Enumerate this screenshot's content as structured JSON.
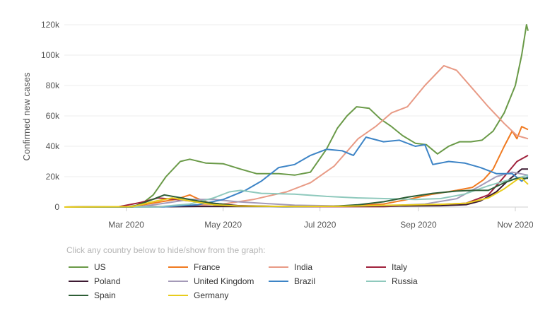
{
  "chart_data": {
    "type": "line",
    "ylabel": "Confirmed new cases",
    "ylim": [
      0,
      120000
    ],
    "yticks": [
      0,
      20000,
      40000,
      60000,
      80000,
      100000,
      120000
    ],
    "ytick_labels": [
      "0",
      "20k",
      "40k",
      "60k",
      "80k",
      "100k",
      "120k"
    ],
    "xlim": [
      "2020-01-22",
      "2020-11-09"
    ],
    "xticks": [
      "2020-03-01",
      "2020-05-01",
      "2020-07-01",
      "2020-09-01",
      "2020-11-01"
    ],
    "xtick_labels": [
      "Mar 2020",
      "May 2020",
      "Jul 2020",
      "Sep 2020",
      "Nov 2020"
    ],
    "grid": "horizontal",
    "legend_hint": "Click any country below to hide/show from the graph:",
    "series": [
      {
        "name": "US",
        "color": "#6a9a48",
        "points": [
          [
            "2020-01-22",
            0
          ],
          [
            "2020-03-01",
            50
          ],
          [
            "2020-03-10",
            1500
          ],
          [
            "2020-03-18",
            8000
          ],
          [
            "2020-03-26",
            20000
          ],
          [
            "2020-04-04",
            30000
          ],
          [
            "2020-04-10",
            31500
          ],
          [
            "2020-04-20",
            29000
          ],
          [
            "2020-05-01",
            28500
          ],
          [
            "2020-05-12",
            25000
          ],
          [
            "2020-05-22",
            22000
          ],
          [
            "2020-06-05",
            22000
          ],
          [
            "2020-06-15",
            21000
          ],
          [
            "2020-06-25",
            23000
          ],
          [
            "2020-07-05",
            38000
          ],
          [
            "2020-07-12",
            52000
          ],
          [
            "2020-07-18",
            60000
          ],
          [
            "2020-07-24",
            66000
          ],
          [
            "2020-08-01",
            65000
          ],
          [
            "2020-08-08",
            58000
          ],
          [
            "2020-08-15",
            53000
          ],
          [
            "2020-08-22",
            47000
          ],
          [
            "2020-08-30",
            42000
          ],
          [
            "2020-09-06",
            41000
          ],
          [
            "2020-09-13",
            35000
          ],
          [
            "2020-09-20",
            40000
          ],
          [
            "2020-09-27",
            43000
          ],
          [
            "2020-10-04",
            43000
          ],
          [
            "2020-10-11",
            44000
          ],
          [
            "2020-10-18",
            50000
          ],
          [
            "2020-10-25",
            62000
          ],
          [
            "2020-11-01",
            80000
          ],
          [
            "2020-11-05",
            100000
          ],
          [
            "2020-11-08",
            120000
          ],
          [
            "2020-11-09",
            116000
          ]
        ]
      },
      {
        "name": "France",
        "color": "#f07a20",
        "points": [
          [
            "2020-01-22",
            0
          ],
          [
            "2020-03-05",
            300
          ],
          [
            "2020-03-20",
            3000
          ],
          [
            "2020-04-01",
            5000
          ],
          [
            "2020-04-10",
            8000
          ],
          [
            "2020-04-14",
            6000
          ],
          [
            "2020-04-25",
            1500
          ],
          [
            "2020-05-10",
            500
          ],
          [
            "2020-06-10",
            400
          ],
          [
            "2020-07-15",
            600
          ],
          [
            "2020-08-10",
            2000
          ],
          [
            "2020-08-25",
            5000
          ],
          [
            "2020-09-10",
            8500
          ],
          [
            "2020-09-25",
            11000
          ],
          [
            "2020-10-05",
            13000
          ],
          [
            "2020-10-12",
            18000
          ],
          [
            "2020-10-18",
            25000
          ],
          [
            "2020-10-25",
            40000
          ],
          [
            "2020-10-30",
            50000
          ],
          [
            "2020-11-02",
            45000
          ],
          [
            "2020-11-05",
            53000
          ],
          [
            "2020-11-09",
            51000
          ]
        ]
      },
      {
        "name": "India",
        "color": "#e89a85",
        "points": [
          [
            "2020-01-22",
            0
          ],
          [
            "2020-04-01",
            500
          ],
          [
            "2020-05-01",
            2000
          ],
          [
            "2020-05-20",
            5000
          ],
          [
            "2020-06-10",
            10000
          ],
          [
            "2020-06-25",
            16000
          ],
          [
            "2020-07-10",
            27000
          ],
          [
            "2020-07-25",
            45000
          ],
          [
            "2020-08-05",
            53000
          ],
          [
            "2020-08-15",
            62000
          ],
          [
            "2020-08-25",
            66000
          ],
          [
            "2020-09-05",
            80000
          ],
          [
            "2020-09-17",
            93000
          ],
          [
            "2020-09-25",
            90000
          ],
          [
            "2020-10-05",
            78000
          ],
          [
            "2020-10-15",
            66000
          ],
          [
            "2020-10-25",
            55000
          ],
          [
            "2020-11-02",
            47000
          ],
          [
            "2020-11-09",
            45000
          ]
        ]
      },
      {
        "name": "Italy",
        "color": "#a0223c",
        "points": [
          [
            "2020-01-22",
            0
          ],
          [
            "2020-02-25",
            200
          ],
          [
            "2020-03-10",
            3000
          ],
          [
            "2020-03-21",
            6000
          ],
          [
            "2020-04-01",
            5000
          ],
          [
            "2020-04-20",
            3000
          ],
          [
            "2020-05-10",
            1000
          ],
          [
            "2020-06-10",
            300
          ],
          [
            "2020-08-10",
            300
          ],
          [
            "2020-09-10",
            1500
          ],
          [
            "2020-10-01",
            2500
          ],
          [
            "2020-10-15",
            8000
          ],
          [
            "2020-10-25",
            20000
          ],
          [
            "2020-11-02",
            30000
          ],
          [
            "2020-11-09",
            34000
          ]
        ]
      },
      {
        "name": "Poland",
        "color": "#3d1a32",
        "points": [
          [
            "2020-01-22",
            0
          ],
          [
            "2020-03-15",
            100
          ],
          [
            "2020-04-15",
            400
          ],
          [
            "2020-06-15",
            400
          ],
          [
            "2020-08-15",
            700
          ],
          [
            "2020-09-15",
            900
          ],
          [
            "2020-10-01",
            1600
          ],
          [
            "2020-10-10",
            4000
          ],
          [
            "2020-10-20",
            10000
          ],
          [
            "2020-10-28",
            18000
          ],
          [
            "2020-11-05",
            25000
          ],
          [
            "2020-11-09",
            25000
          ]
        ]
      },
      {
        "name": "United Kingdom",
        "color": "#a49ab8",
        "points": [
          [
            "2020-01-22",
            0
          ],
          [
            "2020-03-10",
            300
          ],
          [
            "2020-03-28",
            3000
          ],
          [
            "2020-04-10",
            5000
          ],
          [
            "2020-04-25",
            5000
          ],
          [
            "2020-05-10",
            3500
          ],
          [
            "2020-05-25",
            2500
          ],
          [
            "2020-06-15",
            1200
          ],
          [
            "2020-07-15",
            700
          ],
          [
            "2020-08-15",
            1000
          ],
          [
            "2020-09-05",
            2000
          ],
          [
            "2020-09-25",
            5500
          ],
          [
            "2020-10-10",
            14000
          ],
          [
            "2020-10-20",
            20000
          ],
          [
            "2020-10-30",
            23000
          ],
          [
            "2020-11-09",
            21000
          ]
        ]
      },
      {
        "name": "Brazil",
        "color": "#3d84c6",
        "points": [
          [
            "2020-01-22",
            0
          ],
          [
            "2020-03-25",
            200
          ],
          [
            "2020-04-15",
            1500
          ],
          [
            "2020-05-01",
            5000
          ],
          [
            "2020-05-15",
            11000
          ],
          [
            "2020-05-25",
            17000
          ],
          [
            "2020-06-05",
            26000
          ],
          [
            "2020-06-15",
            28000
          ],
          [
            "2020-06-25",
            34000
          ],
          [
            "2020-07-05",
            38000
          ],
          [
            "2020-07-15",
            37000
          ],
          [
            "2020-07-22",
            34000
          ],
          [
            "2020-07-30",
            46000
          ],
          [
            "2020-08-10",
            43000
          ],
          [
            "2020-08-20",
            44000
          ],
          [
            "2020-08-30",
            40000
          ],
          [
            "2020-09-05",
            41000
          ],
          [
            "2020-09-10",
            28000
          ],
          [
            "2020-09-20",
            30000
          ],
          [
            "2020-09-30",
            29000
          ],
          [
            "2020-10-10",
            26000
          ],
          [
            "2020-10-20",
            22000
          ],
          [
            "2020-10-30",
            22000
          ],
          [
            "2020-11-05",
            17000
          ],
          [
            "2020-11-09",
            20000
          ]
        ]
      },
      {
        "name": "Russia",
        "color": "#8fc9bd",
        "points": [
          [
            "2020-01-22",
            0
          ],
          [
            "2020-03-20",
            100
          ],
          [
            "2020-04-10",
            2000
          ],
          [
            "2020-04-25",
            6000
          ],
          [
            "2020-05-05",
            10000
          ],
          [
            "2020-05-12",
            11000
          ],
          [
            "2020-05-25",
            9000
          ],
          [
            "2020-06-15",
            8500
          ],
          [
            "2020-07-05",
            7000
          ],
          [
            "2020-07-25",
            6000
          ],
          [
            "2020-08-15",
            5500
          ],
          [
            "2020-08-30",
            5000
          ],
          [
            "2020-09-15",
            5600
          ],
          [
            "2020-09-30",
            8500
          ],
          [
            "2020-10-15",
            14000
          ],
          [
            "2020-10-25",
            17000
          ],
          [
            "2020-11-02",
            19000
          ],
          [
            "2020-11-09",
            21000
          ]
        ]
      },
      {
        "name": "Spain",
        "color": "#2e5e36",
        "points": [
          [
            "2020-01-22",
            0
          ],
          [
            "2020-03-05",
            200
          ],
          [
            "2020-03-15",
            4000
          ],
          [
            "2020-03-25",
            8000
          ],
          [
            "2020-04-05",
            6000
          ],
          [
            "2020-04-15",
            4000
          ],
          [
            "2020-04-25",
            2500
          ],
          [
            "2020-05-10",
            800
          ],
          [
            "2020-06-10",
            300
          ],
          [
            "2020-07-10",
            500
          ],
          [
            "2020-07-25",
            1500
          ],
          [
            "2020-08-10",
            3500
          ],
          [
            "2020-08-25",
            6500
          ],
          [
            "2020-09-10",
            9000
          ],
          [
            "2020-09-25",
            10500
          ],
          [
            "2020-10-05",
            11000
          ],
          [
            "2020-10-15",
            11000
          ],
          [
            "2020-10-25",
            16000
          ],
          [
            "2020-11-02",
            19000
          ],
          [
            "2020-11-09",
            19000
          ]
        ]
      },
      {
        "name": "Germany",
        "color": "#e8cc1c",
        "points": [
          [
            "2020-01-22",
            0
          ],
          [
            "2020-03-05",
            300
          ],
          [
            "2020-03-20",
            4000
          ],
          [
            "2020-03-30",
            6000
          ],
          [
            "2020-04-10",
            4000
          ],
          [
            "2020-04-25",
            1500
          ],
          [
            "2020-05-10",
            700
          ],
          [
            "2020-06-15",
            400
          ],
          [
            "2020-07-15",
            500
          ],
          [
            "2020-08-15",
            1200
          ],
          [
            "2020-09-15",
            1800
          ],
          [
            "2020-10-01",
            2500
          ],
          [
            "2020-10-15",
            6000
          ],
          [
            "2020-10-25",
            12000
          ],
          [
            "2020-11-02",
            18000
          ],
          [
            "2020-11-05",
            19000
          ],
          [
            "2020-11-09",
            15000
          ]
        ]
      }
    ]
  }
}
